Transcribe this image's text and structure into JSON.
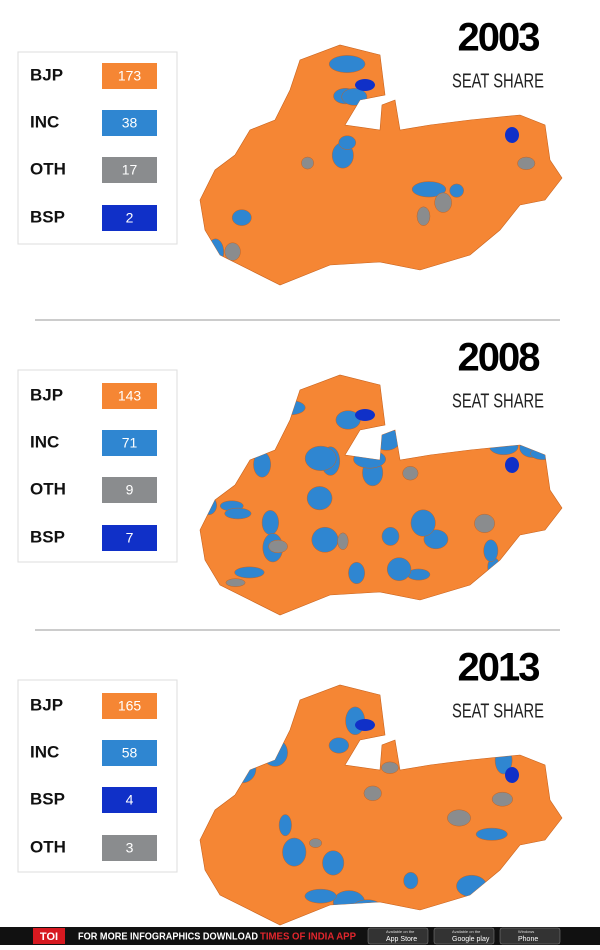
{
  "panels": [
    {
      "year": "2003",
      "subtitle": "SEAT SHARE",
      "rows": [
        {
          "party": "BJP",
          "seats": 173,
          "color": "#f58634"
        },
        {
          "party": "INC",
          "seats": 38,
          "color": "#2f86d1"
        },
        {
          "party": "OTH",
          "seats": 17,
          "color": "#8a8c8e"
        },
        {
          "party": "BSP",
          "seats": 2,
          "color": "#1030c8"
        }
      ]
    },
    {
      "year": "2008",
      "subtitle": "SEAT SHARE",
      "rows": [
        {
          "party": "BJP",
          "seats": 143,
          "color": "#f58634"
        },
        {
          "party": "INC",
          "seats": 71,
          "color": "#2f86d1"
        },
        {
          "party": "OTH",
          "seats": 9,
          "color": "#8a8c8e"
        },
        {
          "party": "BSP",
          "seats": 7,
          "color": "#1030c8"
        }
      ]
    },
    {
      "year": "2013",
      "subtitle": "SEAT SHARE",
      "rows": [
        {
          "party": "BJP",
          "seats": 165,
          "color": "#f58634"
        },
        {
          "party": "INC",
          "seats": 58,
          "color": "#2f86d1"
        },
        {
          "party": "BSP",
          "seats": 4,
          "color": "#1030c8"
        },
        {
          "party": "OTH",
          "seats": 3,
          "color": "#8a8c8e"
        }
      ]
    }
  ],
  "footer": {
    "brand": "TOI",
    "text": "FOR MORE  INFOGRAPHICS DOWNLOAD",
    "app": "TIMES OF INDIA  APP",
    "badges": [
      {
        "small": "Available on the",
        "big": "App Store"
      },
      {
        "small": "Available on the",
        "big": "Google play"
      },
      {
        "small": "Windows",
        "big": "Phone"
      }
    ]
  }
}
